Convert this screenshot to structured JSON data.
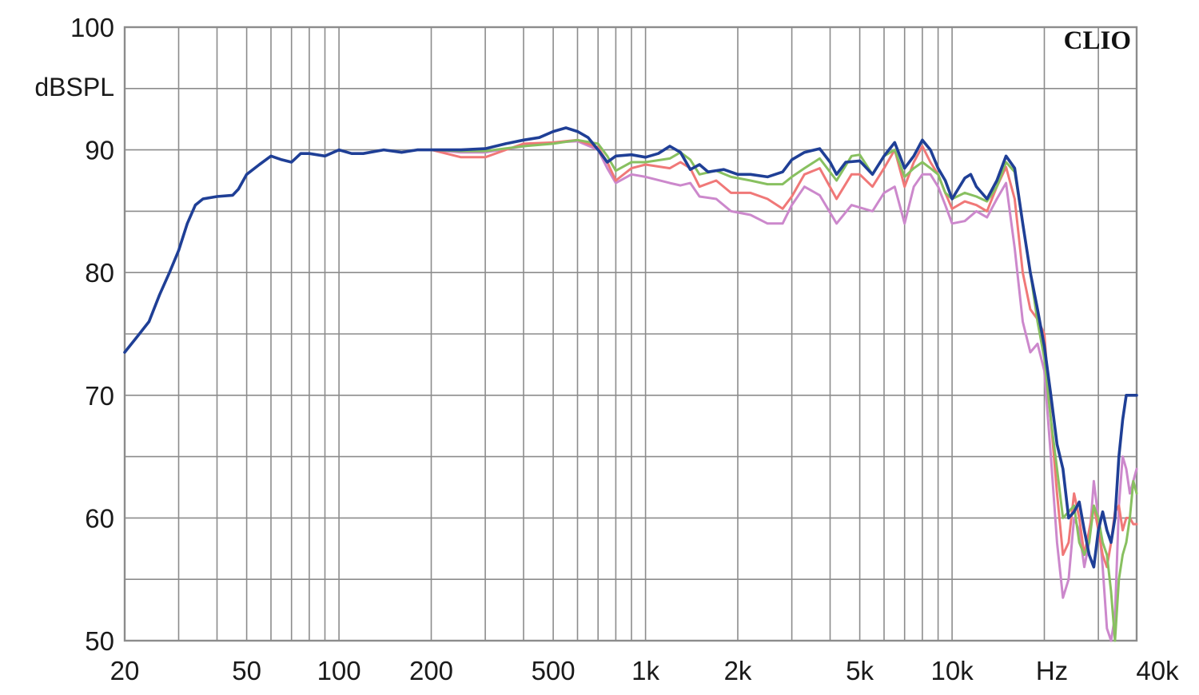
{
  "chart_data": {
    "type": "line",
    "ylabel": "dBSPL",
    "xlabel_unit": "Hz",
    "brand": "CLIO",
    "x_scale": "log",
    "xlim": [
      20,
      40000
    ],
    "ylim": [
      50,
      100
    ],
    "grid": true,
    "y_ticks": [
      50,
      60,
      70,
      80,
      90,
      100
    ],
    "y_tick_labels": [
      "50",
      "60",
      "70",
      "80",
      "90",
      "100"
    ],
    "x_ticks": [
      20,
      50,
      100,
      200,
      500,
      1000,
      2000,
      5000,
      10000,
      40000
    ],
    "x_tick_labels": [
      "20",
      "50",
      "100",
      "200",
      "500",
      "1k",
      "2k",
      "5k",
      "10k",
      "40k"
    ],
    "series": [
      {
        "color": "#cc88cc",
        "points": [
          [
            200,
            90
          ],
          [
            250,
            89.8
          ],
          [
            300,
            89.8
          ],
          [
            400,
            90.3
          ],
          [
            500,
            90.6
          ],
          [
            600,
            90.7
          ],
          [
            700,
            90
          ],
          [
            750,
            88.5
          ],
          [
            800,
            87.3
          ],
          [
            900,
            88
          ],
          [
            1000,
            87.8
          ],
          [
            1200,
            87.3
          ],
          [
            1300,
            87.1
          ],
          [
            1400,
            87.3
          ],
          [
            1500,
            86.2
          ],
          [
            1700,
            86
          ],
          [
            1900,
            85
          ],
          [
            2200,
            84.7
          ],
          [
            2500,
            84
          ],
          [
            2800,
            84
          ],
          [
            3000,
            85.5
          ],
          [
            3300,
            87
          ],
          [
            3700,
            86.3
          ],
          [
            4200,
            84
          ],
          [
            4700,
            85.5
          ],
          [
            5500,
            85
          ],
          [
            6000,
            86.5
          ],
          [
            6500,
            87
          ],
          [
            7000,
            84
          ],
          [
            7500,
            87
          ],
          [
            8000,
            88
          ],
          [
            8500,
            88
          ],
          [
            9000,
            87
          ],
          [
            9500,
            85.5
          ],
          [
            10000,
            84
          ],
          [
            11000,
            84.2
          ],
          [
            12000,
            85
          ],
          [
            13000,
            84.5
          ],
          [
            14000,
            86
          ],
          [
            15000,
            87.3
          ],
          [
            16000,
            82
          ],
          [
            17000,
            76
          ],
          [
            18000,
            73.5
          ],
          [
            19000,
            74.2
          ],
          [
            20000,
            72
          ],
          [
            21000,
            65
          ],
          [
            22000,
            58
          ],
          [
            23000,
            53.5
          ],
          [
            24000,
            55
          ],
          [
            25000,
            60
          ],
          [
            26000,
            59
          ],
          [
            27000,
            56
          ],
          [
            28000,
            58
          ],
          [
            29000,
            63
          ],
          [
            30000,
            60
          ],
          [
            31000,
            56
          ],
          [
            32000,
            51
          ],
          [
            33000,
            50
          ],
          [
            34000,
            52
          ],
          [
            35000,
            61
          ],
          [
            36000,
            65
          ],
          [
            37000,
            64
          ],
          [
            38000,
            62
          ],
          [
            39000,
            63
          ],
          [
            40000,
            64
          ]
        ]
      },
      {
        "color": "#f07878",
        "points": [
          [
            200,
            90
          ],
          [
            250,
            89.4
          ],
          [
            300,
            89.4
          ],
          [
            350,
            90
          ],
          [
            400,
            90.5
          ],
          [
            500,
            90.6
          ],
          [
            600,
            90.8
          ],
          [
            700,
            90.2
          ],
          [
            750,
            89
          ],
          [
            800,
            87.5
          ],
          [
            900,
            88.5
          ],
          [
            1000,
            88.8
          ],
          [
            1200,
            88.5
          ],
          [
            1300,
            89
          ],
          [
            1400,
            88.5
          ],
          [
            1500,
            87
          ],
          [
            1700,
            87.5
          ],
          [
            1900,
            86.5
          ],
          [
            2200,
            86.5
          ],
          [
            2500,
            86
          ],
          [
            2800,
            85.2
          ],
          [
            3000,
            86.2
          ],
          [
            3300,
            88
          ],
          [
            3700,
            88.5
          ],
          [
            4200,
            86
          ],
          [
            4700,
            88
          ],
          [
            5000,
            88
          ],
          [
            5500,
            87
          ],
          [
            6000,
            88.5
          ],
          [
            6500,
            90
          ],
          [
            7000,
            87
          ],
          [
            7500,
            89
          ],
          [
            8000,
            90.3
          ],
          [
            8500,
            89
          ],
          [
            9000,
            88
          ],
          [
            9500,
            86.5
          ],
          [
            10000,
            85.2
          ],
          [
            11000,
            85.8
          ],
          [
            12000,
            85.5
          ],
          [
            13000,
            85
          ],
          [
            14000,
            87
          ],
          [
            15000,
            88.6
          ],
          [
            16000,
            86
          ],
          [
            17000,
            80
          ],
          [
            18000,
            77
          ],
          [
            19000,
            76.2
          ],
          [
            20000,
            75
          ],
          [
            21000,
            68
          ],
          [
            22000,
            62
          ],
          [
            23000,
            57
          ],
          [
            24000,
            58
          ],
          [
            25000,
            62
          ],
          [
            26000,
            60
          ],
          [
            27000,
            57
          ],
          [
            28000,
            59
          ],
          [
            29000,
            61
          ],
          [
            30000,
            59
          ],
          [
            31000,
            57
          ],
          [
            32000,
            56
          ],
          [
            33000,
            58
          ],
          [
            34000,
            60.5
          ],
          [
            35000,
            61
          ],
          [
            36000,
            59
          ],
          [
            37000,
            60
          ],
          [
            38000,
            60
          ],
          [
            39000,
            59.5
          ],
          [
            40000,
            59.5
          ]
        ]
      },
      {
        "color": "#88c060",
        "points": [
          [
            200,
            90
          ],
          [
            250,
            89.9
          ],
          [
            300,
            89.9
          ],
          [
            400,
            90.3
          ],
          [
            500,
            90.5
          ],
          [
            600,
            90.8
          ],
          [
            700,
            90.5
          ],
          [
            750,
            89.5
          ],
          [
            800,
            88.3
          ],
          [
            900,
            89
          ],
          [
            1000,
            89
          ],
          [
            1200,
            89.3
          ],
          [
            1300,
            89.8
          ],
          [
            1400,
            89.2
          ],
          [
            1500,
            88
          ],
          [
            1700,
            88.3
          ],
          [
            1900,
            87.8
          ],
          [
            2200,
            87.5
          ],
          [
            2500,
            87.2
          ],
          [
            2800,
            87.2
          ],
          [
            3000,
            87.8
          ],
          [
            3300,
            88.5
          ],
          [
            3700,
            89.3
          ],
          [
            4200,
            87.5
          ],
          [
            4700,
            89.5
          ],
          [
            5000,
            89.6
          ],
          [
            5500,
            88
          ],
          [
            6000,
            89.5
          ],
          [
            6500,
            90
          ],
          [
            7000,
            87.8
          ],
          [
            7500,
            88.5
          ],
          [
            8000,
            89
          ],
          [
            8500,
            88.5
          ],
          [
            9000,
            88
          ],
          [
            9500,
            86.5
          ],
          [
            10000,
            86
          ],
          [
            11000,
            86.5
          ],
          [
            12000,
            86.2
          ],
          [
            13000,
            85.8
          ],
          [
            14000,
            87
          ],
          [
            15000,
            89
          ],
          [
            16000,
            88.2
          ],
          [
            17000,
            84
          ],
          [
            18000,
            80
          ],
          [
            19000,
            76
          ],
          [
            20000,
            73
          ],
          [
            21000,
            68
          ],
          [
            22000,
            64
          ],
          [
            23000,
            60
          ],
          [
            24000,
            60.5
          ],
          [
            25000,
            61
          ],
          [
            26000,
            58
          ],
          [
            27000,
            57
          ],
          [
            28000,
            58
          ],
          [
            29000,
            61
          ],
          [
            30000,
            60
          ],
          [
            31000,
            58
          ],
          [
            32000,
            57
          ],
          [
            33000,
            54
          ],
          [
            34000,
            50
          ],
          [
            35000,
            55
          ],
          [
            36000,
            57
          ],
          [
            37000,
            58
          ],
          [
            38000,
            60
          ],
          [
            39000,
            63
          ],
          [
            40000,
            62
          ]
        ]
      },
      {
        "color": "#1f3f96",
        "points": [
          [
            20,
            73.5
          ],
          [
            22,
            74.8
          ],
          [
            24,
            76
          ],
          [
            26,
            78.2
          ],
          [
            28,
            80
          ],
          [
            30,
            81.8
          ],
          [
            32,
            84
          ],
          [
            34,
            85.5
          ],
          [
            36,
            86
          ],
          [
            40,
            86.2
          ],
          [
            45,
            86.3
          ],
          [
            47,
            86.8
          ],
          [
            50,
            88
          ],
          [
            55,
            88.8
          ],
          [
            60,
            89.5
          ],
          [
            65,
            89.2
          ],
          [
            70,
            89
          ],
          [
            75,
            89.7
          ],
          [
            80,
            89.7
          ],
          [
            90,
            89.5
          ],
          [
            100,
            90
          ],
          [
            110,
            89.7
          ],
          [
            120,
            89.7
          ],
          [
            140,
            90
          ],
          [
            160,
            89.8
          ],
          [
            180,
            90
          ],
          [
            200,
            90
          ],
          [
            250,
            90
          ],
          [
            300,
            90.1
          ],
          [
            350,
            90.5
          ],
          [
            400,
            90.8
          ],
          [
            450,
            91
          ],
          [
            500,
            91.5
          ],
          [
            550,
            91.8
          ],
          [
            600,
            91.5
          ],
          [
            650,
            91
          ],
          [
            700,
            90
          ],
          [
            750,
            89
          ],
          [
            800,
            89.5
          ],
          [
            900,
            89.6
          ],
          [
            1000,
            89.4
          ],
          [
            1100,
            89.7
          ],
          [
            1200,
            90.3
          ],
          [
            1300,
            89.8
          ],
          [
            1400,
            88.4
          ],
          [
            1500,
            88.8
          ],
          [
            1600,
            88.2
          ],
          [
            1800,
            88.4
          ],
          [
            2000,
            88
          ],
          [
            2200,
            88
          ],
          [
            2500,
            87.8
          ],
          [
            2800,
            88.2
          ],
          [
            3000,
            89.2
          ],
          [
            3300,
            89.8
          ],
          [
            3700,
            90.1
          ],
          [
            4000,
            89
          ],
          [
            4200,
            88
          ],
          [
            4500,
            89
          ],
          [
            5000,
            89.1
          ],
          [
            5500,
            88
          ],
          [
            6000,
            89.5
          ],
          [
            6500,
            90.6
          ],
          [
            7000,
            88.5
          ],
          [
            7500,
            89.5
          ],
          [
            8000,
            90.8
          ],
          [
            8500,
            90
          ],
          [
            9000,
            88.5
          ],
          [
            9500,
            87.5
          ],
          [
            10000,
            86
          ],
          [
            11000,
            87.7
          ],
          [
            11500,
            88
          ],
          [
            12000,
            87
          ],
          [
            13000,
            86
          ],
          [
            14000,
            87.5
          ],
          [
            15000,
            89.5
          ],
          [
            16000,
            88.5
          ],
          [
            17000,
            84
          ],
          [
            18000,
            80
          ],
          [
            19000,
            77
          ],
          [
            20000,
            74
          ],
          [
            21000,
            70
          ],
          [
            22000,
            66
          ],
          [
            23000,
            64
          ],
          [
            24000,
            60
          ],
          [
            25000,
            60.5
          ],
          [
            26000,
            61.3
          ],
          [
            27000,
            59
          ],
          [
            28000,
            57
          ],
          [
            29000,
            56
          ],
          [
            30000,
            59
          ],
          [
            31000,
            60.5
          ],
          [
            32000,
            59
          ],
          [
            33000,
            58
          ],
          [
            34000,
            60
          ],
          [
            35000,
            65
          ],
          [
            36000,
            68
          ],
          [
            37000,
            70
          ],
          [
            40000,
            70
          ]
        ]
      }
    ]
  }
}
